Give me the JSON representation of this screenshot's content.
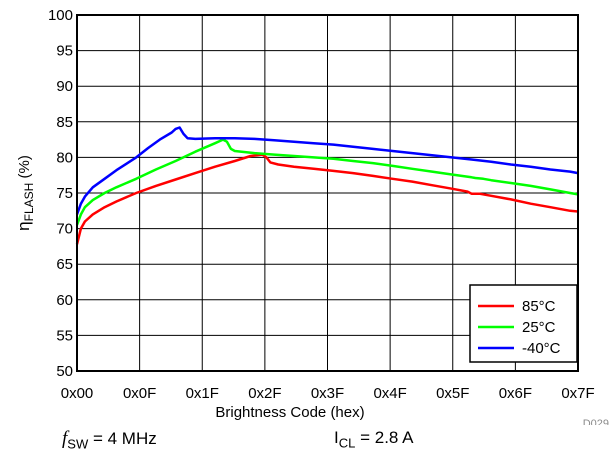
{
  "chart_data": {
    "type": "line",
    "xlabel": "Brightness Code (hex)",
    "ylabel_main": "η",
    "ylabel_sub": "FLASH",
    "ylabel_unit": " (%)",
    "x_ticks": [
      "0x00",
      "0x0F",
      "0x1F",
      "0x2F",
      "0x3F",
      "0x4F",
      "0x5F",
      "0x6F",
      "0x7F"
    ],
    "y_ticks": [
      "50",
      "55",
      "60",
      "65",
      "70",
      "75",
      "80",
      "85",
      "90",
      "95",
      "100"
    ],
    "xlim": [
      0,
      127
    ],
    "ylim": [
      50,
      100
    ],
    "grid": true,
    "legend_position": "bottom-right",
    "series": [
      {
        "name": "85°C",
        "color": "#ff0000",
        "points": [
          [
            0,
            67.8
          ],
          [
            1,
            70.0
          ],
          [
            2,
            71.0
          ],
          [
            4,
            72.0
          ],
          [
            7,
            73.0
          ],
          [
            10,
            73.8
          ],
          [
            15,
            75.0
          ],
          [
            20,
            76.0
          ],
          [
            25,
            76.9
          ],
          [
            30,
            77.8
          ],
          [
            35,
            78.7
          ],
          [
            40,
            79.5
          ],
          [
            44,
            80.2
          ],
          [
            47,
            80.4
          ],
          [
            48,
            80.0
          ],
          [
            49,
            79.3
          ],
          [
            51,
            79.0
          ],
          [
            55,
            78.7
          ],
          [
            60,
            78.4
          ],
          [
            65,
            78.1
          ],
          [
            70,
            77.8
          ],
          [
            75,
            77.4
          ],
          [
            80,
            77.0
          ],
          [
            85,
            76.6
          ],
          [
            90,
            76.1
          ],
          [
            95,
            75.6
          ],
          [
            99,
            75.2
          ],
          [
            100,
            74.9
          ],
          [
            102,
            74.9
          ],
          [
            105,
            74.6
          ],
          [
            110,
            74.1
          ],
          [
            115,
            73.5
          ],
          [
            120,
            73.0
          ],
          [
            125,
            72.5
          ],
          [
            127,
            72.4
          ]
        ]
      },
      {
        "name": "25°C",
        "color": "#00ff00",
        "points": [
          [
            0,
            70.5
          ],
          [
            1,
            72.0
          ],
          [
            2,
            73.0
          ],
          [
            4,
            74.0
          ],
          [
            7,
            75.0
          ],
          [
            10,
            75.8
          ],
          [
            15,
            77.0
          ],
          [
            20,
            78.3
          ],
          [
            25,
            79.5
          ],
          [
            30,
            80.8
          ],
          [
            35,
            82.0
          ],
          [
            37,
            82.5
          ],
          [
            38,
            82.2
          ],
          [
            39,
            81.2
          ],
          [
            40,
            80.9
          ],
          [
            45,
            80.6
          ],
          [
            50,
            80.4
          ],
          [
            55,
            80.2
          ],
          [
            60,
            80.0
          ],
          [
            65,
            79.8
          ],
          [
            70,
            79.5
          ],
          [
            75,
            79.2
          ],
          [
            80,
            78.8
          ],
          [
            85,
            78.4
          ],
          [
            90,
            78.0
          ],
          [
            95,
            77.6
          ],
          [
            100,
            77.2
          ],
          [
            101,
            77.1
          ],
          [
            103,
            77.0
          ],
          [
            105,
            76.8
          ],
          [
            110,
            76.4
          ],
          [
            115,
            76.0
          ],
          [
            120,
            75.5
          ],
          [
            125,
            75.0
          ],
          [
            127,
            74.8
          ]
        ]
      },
      {
        "name": "-40°C",
        "color": "#0000ff",
        "points": [
          [
            0,
            72.0
          ],
          [
            1,
            73.5
          ],
          [
            2,
            74.5
          ],
          [
            4,
            75.8
          ],
          [
            7,
            77.0
          ],
          [
            10,
            78.2
          ],
          [
            15,
            80.0
          ],
          [
            18,
            81.3
          ],
          [
            21,
            82.5
          ],
          [
            24,
            83.5
          ],
          [
            25,
            84.0
          ],
          [
            26,
            84.2
          ],
          [
            27,
            83.3
          ],
          [
            28,
            82.7
          ],
          [
            30,
            82.6
          ],
          [
            35,
            82.7
          ],
          [
            40,
            82.7
          ],
          [
            45,
            82.6
          ],
          [
            50,
            82.4
          ],
          [
            55,
            82.2
          ],
          [
            60,
            82.0
          ],
          [
            65,
            81.8
          ],
          [
            70,
            81.5
          ],
          [
            75,
            81.2
          ],
          [
            80,
            80.9
          ],
          [
            85,
            80.6
          ],
          [
            90,
            80.3
          ],
          [
            95,
            80.0
          ],
          [
            100,
            79.7
          ],
          [
            105,
            79.4
          ],
          [
            110,
            79.0
          ],
          [
            115,
            78.7
          ],
          [
            120,
            78.3
          ],
          [
            125,
            78.0
          ],
          [
            127,
            77.8
          ]
        ]
      }
    ]
  },
  "figure_id": "D029",
  "caption": {
    "fsw_symbol": "f",
    "fsw_sub": "SW",
    "fsw_value": " = 4 MHz",
    "icl_symbol": "I",
    "icl_sub": "CL",
    "icl_value": " = 2.8 A"
  }
}
